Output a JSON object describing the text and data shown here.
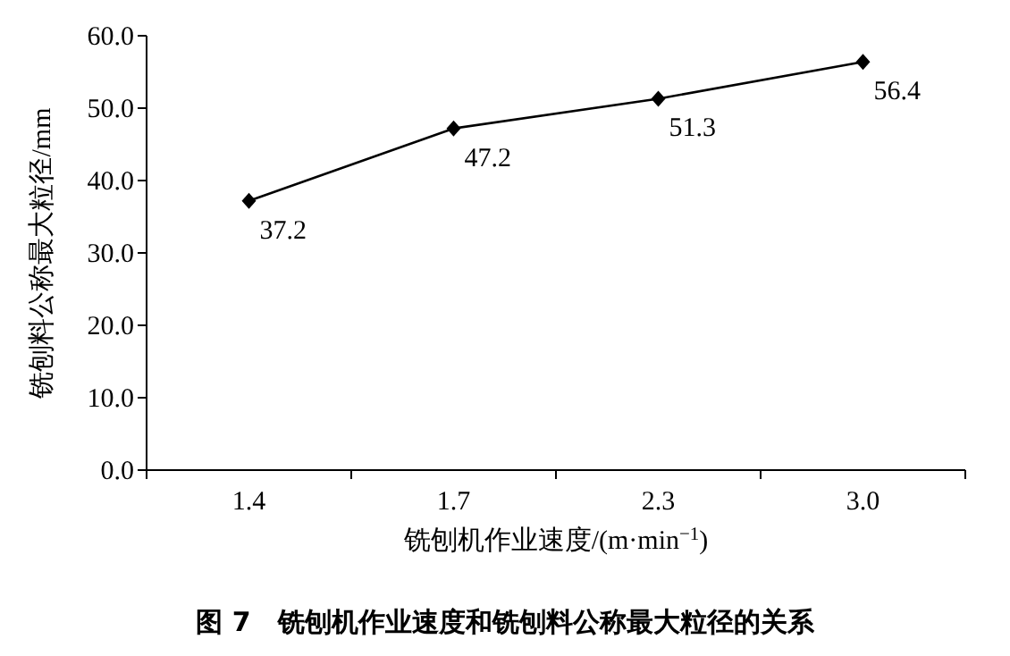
{
  "chart_data": {
    "type": "line",
    "title": "图 7　铣刨机作业速度和铣刨料公称最大粒径的关系",
    "xlabel": "铣刨机作业速度/(m·min$^{−1}$)",
    "ylabel": "铣刨料公称最大粒径/mm",
    "categories": [
      "1.4",
      "1.7",
      "2.3",
      "3.0"
    ],
    "series": [
      {
        "color": "#000000",
        "values": [
          37.2,
          47.2,
          51.3,
          56.4
        ]
      }
    ],
    "ylim": [
      0,
      60
    ],
    "yticks": [
      {
        "value": 0,
        "label": "0.0"
      },
      {
        "value": 10,
        "label": "10.0"
      },
      {
        "value": 20,
        "label": "20.0"
      },
      {
        "value": 30,
        "label": "30.0"
      },
      {
        "value": 40,
        "label": "40.0"
      },
      {
        "value": 50,
        "label": "50.0"
      },
      {
        "value": 60,
        "label": "60.0"
      }
    ],
    "marker": "diamond",
    "line_style": "solid",
    "data_labels": true,
    "grid": false
  }
}
